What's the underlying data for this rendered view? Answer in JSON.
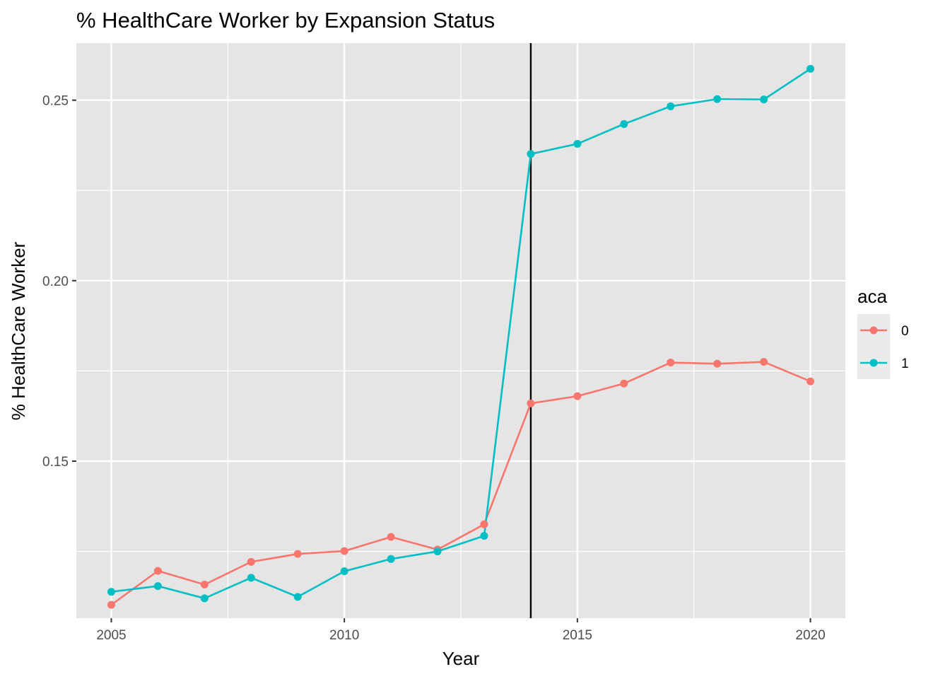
{
  "chart_data": {
    "type": "line",
    "title": "% HealthCare Worker by Expansion Status",
    "xlabel": "Year",
    "ylabel": "% HealthCare Worker",
    "xlim": [
      2004.25,
      2020.75
    ],
    "ylim": [
      0.1065,
      0.2658
    ],
    "x_ticks": [
      2005,
      2010,
      2015,
      2020
    ],
    "x_tick_labels": [
      "2005",
      "2010",
      "2015",
      "2020"
    ],
    "y_ticks": [
      0.15,
      0.2,
      0.25
    ],
    "y_tick_labels": [
      "0.15",
      "0.20",
      "0.25"
    ],
    "x_minor": [
      2007.5,
      2012.5,
      2017.5
    ],
    "y_minor": [
      0.125,
      0.175,
      0.225
    ],
    "vline_x": 2014,
    "grid": true,
    "panel_background": "#e5e5e5",
    "legend": {
      "title": "aca",
      "position": "right"
    },
    "x": [
      2005,
      2006,
      2007,
      2008,
      2009,
      2010,
      2011,
      2012,
      2013,
      2014,
      2015,
      2016,
      2017,
      2018,
      2019,
      2020
    ],
    "series": [
      {
        "name": "0",
        "color": "#f8766d",
        "values": [
          0.1102,
          0.1196,
          0.1158,
          0.1221,
          0.1243,
          0.1251,
          0.129,
          0.1255,
          0.1325,
          0.166,
          0.168,
          0.1715,
          0.1773,
          0.177,
          0.1775,
          0.1721
        ]
      },
      {
        "name": "1",
        "color": "#00bfc4",
        "values": [
          0.1138,
          0.1154,
          0.112,
          0.1177,
          0.1124,
          0.1195,
          0.1229,
          0.125,
          0.1293,
          0.2351,
          0.2379,
          0.2434,
          0.2483,
          0.2503,
          0.2502,
          0.2587
        ]
      }
    ]
  }
}
